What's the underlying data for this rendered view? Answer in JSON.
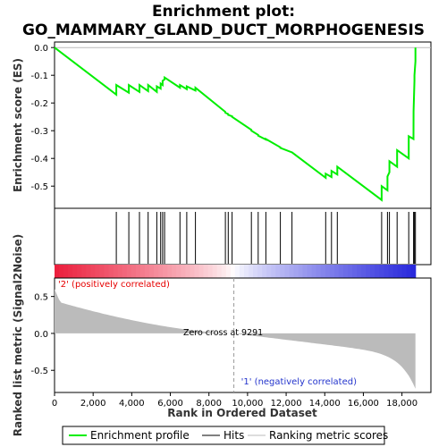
{
  "chart_data": {
    "type": "line",
    "title_line1": "Enrichment plot:",
    "title_line2": "GO_MAMMARY_GLAND_DUCT_MORPHOGENESIS",
    "xlabel": "Rank in Ordered Dataset",
    "es_ylabel": "Enrichment score (ES)",
    "metric_ylabel": "Ranked list metric (Signal2Noise)",
    "xlim": [
      0,
      19500
    ],
    "es_ylim": [
      -0.58,
      0.02
    ],
    "metric_ylim": [
      -0.8,
      0.75
    ],
    "x_ticks": [
      0,
      2000,
      4000,
      6000,
      8000,
      10000,
      12000,
      14000,
      16000,
      18000
    ],
    "x_tick_labels": [
      "0",
      "2,000",
      "4,000",
      "6,000",
      "8,000",
      "10,000",
      "12,000",
      "14,000",
      "16,000",
      "18,000"
    ],
    "es_ticks": [
      0.0,
      -0.1,
      -0.2,
      -0.3,
      -0.4,
      -0.5
    ],
    "es_tick_labels": [
      "0.0",
      "-0.1",
      "-0.2",
      "-0.3",
      "-0.4",
      "-0.5"
    ],
    "metric_ticks": [
      0.5,
      0.0,
      -0.5
    ],
    "metric_tick_labels": [
      "0.5",
      "0.0",
      "-0.5"
    ],
    "n_genes": 18700,
    "zero_cross": 9291,
    "zero_cross_label": "Zero cross at 9291",
    "positive_label": "'2' (positively correlated)",
    "negative_label": "'1' (negatively correlated)",
    "hits": [
      3200,
      3850,
      4400,
      4850,
      5300,
      5500,
      5600,
      5700,
      6500,
      6850,
      7300,
      8850,
      9000,
      9200,
      10200,
      10550,
      10950,
      11700,
      12300,
      14050,
      14350,
      14650,
      16950,
      17250,
      17350,
      17750,
      18350,
      18600,
      18650,
      18700
    ],
    "series": [
      {
        "name": "Enrichment profile",
        "color": "#00ee00",
        "x": [
          0,
          3199,
          3200,
          3849,
          3850,
          4399,
          4400,
          4849,
          4850,
          5299,
          5300,
          5499,
          5500,
          5599,
          5600,
          5699,
          5700,
          6499,
          6500,
          6849,
          6850,
          7299,
          7300,
          8849,
          8850,
          8999,
          9000,
          9199,
          9200,
          10199,
          10200,
          10549,
          10550,
          10949,
          10950,
          11699,
          11700,
          12299,
          12300,
          14049,
          14050,
          14349,
          14350,
          14649,
          14650,
          16949,
          16950,
          17249,
          17250,
          17349,
          17350,
          17749,
          17750,
          18349,
          18350,
          18599,
          18600,
          18649,
          18650,
          18699,
          18700
        ],
        "y": [
          0.0,
          -0.17,
          -0.135,
          -0.163,
          -0.135,
          -0.16,
          -0.135,
          -0.157,
          -0.135,
          -0.16,
          -0.14,
          -0.148,
          -0.13,
          -0.135,
          -0.12,
          -0.115,
          -0.108,
          -0.145,
          -0.135,
          -0.15,
          -0.14,
          -0.155,
          -0.145,
          -0.232,
          -0.235,
          -0.24,
          -0.243,
          -0.248,
          -0.25,
          -0.297,
          -0.3,
          -0.315,
          -0.318,
          -0.332,
          -0.33,
          -0.36,
          -0.362,
          -0.378,
          -0.378,
          -0.47,
          -0.455,
          -0.467,
          -0.445,
          -0.458,
          -0.43,
          -0.55,
          -0.5,
          -0.515,
          -0.465,
          -0.45,
          -0.41,
          -0.43,
          -0.37,
          -0.4,
          -0.32,
          -0.33,
          -0.23,
          -0.12,
          -0.1,
          -0.05,
          0.0
        ]
      }
    ],
    "legend": [
      {
        "label": "Enrichment profile",
        "color": "#00ee00"
      },
      {
        "label": "Hits",
        "color": "#000000"
      },
      {
        "label": "Ranking metric scores",
        "color": "#bbbbbb"
      }
    ],
    "grid": false
  }
}
